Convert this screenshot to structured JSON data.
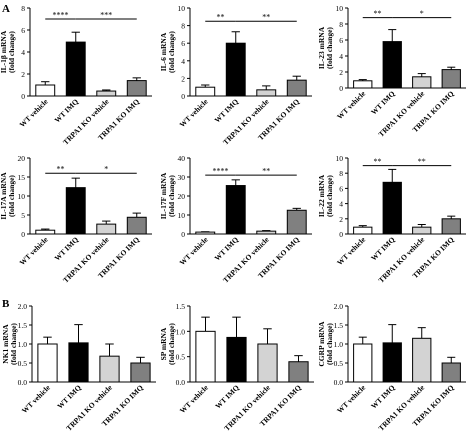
{
  "panel_labels": [
    "A",
    "B"
  ],
  "chart_data": [
    {
      "panel": "A",
      "type": "bar",
      "categories": [
        "WT vehicle",
        "WT IMQ",
        "TRPA1 KO vehicle",
        "TRPA1 KO IMQ"
      ],
      "ylabel": "IL-1β mRNA\n(fold change)",
      "ylim": [
        0,
        8
      ],
      "yticks": [
        0,
        2,
        4,
        6,
        8
      ],
      "values": [
        1.0,
        4.9,
        0.45,
        1.4
      ],
      "errors": [
        0.3,
        0.9,
        0.1,
        0.25
      ],
      "colors": [
        "#ffffff",
        "#000000",
        "#d3d3d3",
        "#808080"
      ],
      "sig": [
        {
          "from": 0,
          "to": 1,
          "label": "****",
          "y": 7.0
        },
        {
          "from": 1,
          "to": 3,
          "label": "***",
          "y": 7.0
        }
      ]
    },
    {
      "panel": "A",
      "type": "bar",
      "categories": [
        "WT vehicle",
        "WT IMQ",
        "TRPA1 KO vehicle",
        "TRPA1 KO IMQ"
      ],
      "ylabel": "IL-6 mRNA\n(fold change)",
      "ylim": [
        0,
        10
      ],
      "yticks": [
        0,
        2,
        4,
        6,
        8,
        10
      ],
      "values": [
        1.0,
        6.0,
        0.7,
        1.8
      ],
      "errors": [
        0.25,
        1.3,
        0.45,
        0.45
      ],
      "colors": [
        "#ffffff",
        "#000000",
        "#d3d3d3",
        "#808080"
      ],
      "sig": [
        {
          "from": 0,
          "to": 1,
          "label": "**",
          "y": 8.5
        },
        {
          "from": 1,
          "to": 3,
          "label": "**",
          "y": 8.5
        }
      ]
    },
    {
      "panel": "A",
      "type": "bar",
      "categories": [
        "WT vehicle",
        "WT IMQ",
        "TRPA1 KO vehicle",
        "TRPA1 KO IMQ"
      ],
      "ylabel": "IL-23 mRNA\n(fold change)",
      "ylim": [
        0,
        10
      ],
      "yticks": [
        0,
        2,
        4,
        6,
        8,
        10
      ],
      "values": [
        0.9,
        5.8,
        1.4,
        2.3
      ],
      "errors": [
        0.15,
        1.5,
        0.4,
        0.3
      ],
      "colors": [
        "#ffffff",
        "#000000",
        "#d3d3d3",
        "#808080"
      ],
      "sig": [
        {
          "from": 0,
          "to": 1,
          "label": "**",
          "y": 8.8
        },
        {
          "from": 1,
          "to": 3,
          "label": "*",
          "y": 8.8
        }
      ]
    },
    {
      "panel": "A",
      "type": "bar",
      "categories": [
        "WT vehicle",
        "WT IMQ",
        "TRPA1 KO vehicle",
        "TRPA1 KO IMQ"
      ],
      "ylabel": "IL-17A mRNA\n(fold change)",
      "ylim": [
        0,
        20
      ],
      "yticks": [
        0,
        5,
        10,
        15,
        20
      ],
      "values": [
        1.0,
        12.2,
        2.6,
        4.4
      ],
      "errors": [
        0.3,
        2.5,
        0.8,
        1.1
      ],
      "colors": [
        "#ffffff",
        "#000000",
        "#d3d3d3",
        "#808080"
      ],
      "sig": [
        {
          "from": 0,
          "to": 1,
          "label": "**",
          "y": 16.0
        },
        {
          "from": 1,
          "to": 3,
          "label": "*",
          "y": 16.0
        }
      ]
    },
    {
      "panel": "A",
      "type": "bar",
      "categories": [
        "WT vehicle",
        "WT IMQ",
        "TRPA1 KO vehicle",
        "TRPA1 KO IMQ"
      ],
      "ylabel": "IL-17F mRNA\n(fold change)",
      "ylim": [
        0,
        40
      ],
      "yticks": [
        0,
        10,
        20,
        30,
        40
      ],
      "values": [
        1.0,
        25.5,
        1.5,
        12.5
      ],
      "errors": [
        0.2,
        3.0,
        0.3,
        1.0
      ],
      "colors": [
        "#ffffff",
        "#000000",
        "#d3d3d3",
        "#808080"
      ],
      "sig": [
        {
          "from": 0,
          "to": 1,
          "label": "****",
          "y": 31.0
        },
        {
          "from": 1,
          "to": 3,
          "label": "**",
          "y": 31.0
        }
      ]
    },
    {
      "panel": "A",
      "type": "bar",
      "categories": [
        "WT vehicle",
        "WT IMQ",
        "TRPA1 KO vehicle",
        "TRPA1 KO IMQ"
      ],
      "ylabel": "IL-22 mRNA\n(fold change)",
      "ylim": [
        0,
        10
      ],
      "yticks": [
        0,
        2,
        4,
        6,
        8,
        10
      ],
      "values": [
        0.9,
        6.8,
        0.9,
        2.0
      ],
      "errors": [
        0.2,
        1.7,
        0.35,
        0.35
      ],
      "colors": [
        "#ffffff",
        "#000000",
        "#d3d3d3",
        "#808080"
      ],
      "sig": [
        {
          "from": 0,
          "to": 1,
          "label": "**",
          "y": 9.0
        },
        {
          "from": 1,
          "to": 3,
          "label": "**",
          "y": 9.0
        }
      ]
    },
    {
      "panel": "B",
      "type": "bar",
      "categories": [
        "WT vehicle",
        "WT IMQ",
        "TRPA1 KO vehicle",
        "TRPA1 KO IMQ"
      ],
      "ylabel": "NK1 mRNA\n(fold change)",
      "ylim": [
        0,
        2.0
      ],
      "yticks": [
        0.0,
        0.5,
        1.0,
        1.5,
        2.0
      ],
      "values": [
        1.0,
        1.03,
        0.68,
        0.5
      ],
      "errors": [
        0.18,
        0.48,
        0.32,
        0.15
      ],
      "colors": [
        "#ffffff",
        "#000000",
        "#d3d3d3",
        "#808080"
      ],
      "sig": []
    },
    {
      "panel": "B",
      "type": "bar",
      "categories": [
        "WT vehicle",
        "WT IMQ",
        "TRPA1 KO vehicle",
        "TRPA1 KO IMQ"
      ],
      "ylabel": "SP mRNA\n(fold change)",
      "ylim": [
        0,
        1.5
      ],
      "yticks": [
        0.0,
        0.5,
        1.0,
        1.5
      ],
      "values": [
        1.0,
        0.88,
        0.75,
        0.4
      ],
      "errors": [
        0.28,
        0.4,
        0.3,
        0.12
      ],
      "colors": [
        "#ffffff",
        "#000000",
        "#d3d3d3",
        "#808080"
      ],
      "sig": []
    },
    {
      "panel": "B",
      "type": "bar",
      "categories": [
        "WT vehicle",
        "WT IMQ",
        "TRPA1 KO vehicle",
        "TRPA1 KO IMQ"
      ],
      "ylabel": "CGRP mRNA\n(fold change)",
      "ylim": [
        0,
        2.0
      ],
      "yticks": [
        0.0,
        0.5,
        1.0,
        1.5,
        2.0
      ],
      "values": [
        1.0,
        1.03,
        1.15,
        0.5
      ],
      "errors": [
        0.18,
        0.48,
        0.28,
        0.15
      ],
      "colors": [
        "#ffffff",
        "#000000",
        "#d3d3d3",
        "#808080"
      ],
      "sig": []
    }
  ]
}
